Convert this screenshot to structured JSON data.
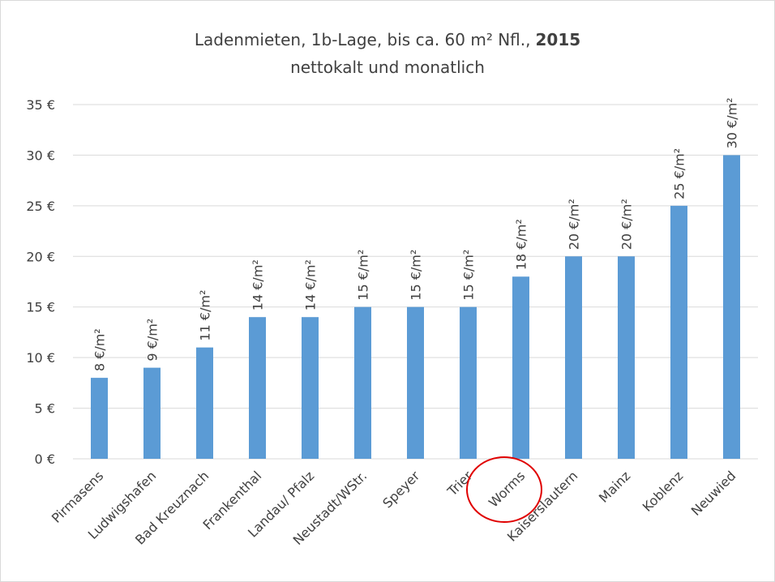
{
  "chart_data": {
    "type": "bar",
    "title": "Ladenmieten, 1b-Lage, bis ca. 60 m² Nfl.,",
    "title_year": "2015",
    "subtitle": "nettokalt und monatlich",
    "categories": [
      "Pirmasens",
      "Ludwigshafen",
      "Bad Kreuznach",
      "Frankenthal",
      "Landau/ Pfalz",
      "Neustadt/WStr.",
      "Speyer",
      "Trier",
      "Worms",
      "Kaiserslautern",
      "Mainz",
      "Koblenz",
      "Neuwied"
    ],
    "values": [
      8,
      9,
      11,
      14,
      14,
      15,
      15,
      15,
      18,
      20,
      20,
      25,
      30
    ],
    "value_labels": [
      "8 €/m²",
      "9 €/m²",
      "11 €/m²",
      "14 €/m²",
      "14 €/m²",
      "15 €/m²",
      "15 €/m²",
      "15 €/m²",
      "18 €/m²",
      "20 €/m²",
      "20 €/m²",
      "25 €/m²",
      "30 €/m²"
    ],
    "color": "#5b9bd5",
    "ylim": [
      0,
      35
    ],
    "yticks": [
      {
        "value": 0,
        "label": "0 €"
      },
      {
        "value": 5,
        "label": "5 €"
      },
      {
        "value": 10,
        "label": "10 €"
      },
      {
        "value": 15,
        "label": "15 €"
      },
      {
        "value": 20,
        "label": "20 €"
      },
      {
        "value": 25,
        "label": "25 €"
      },
      {
        "value": 30,
        "label": "30 €"
      },
      {
        "value": 35,
        "label": "35 €"
      }
    ],
    "grid": true
  }
}
